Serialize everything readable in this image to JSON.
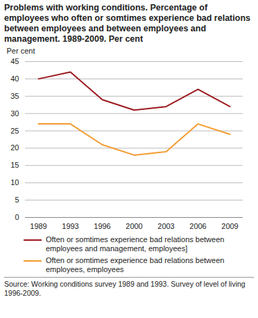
{
  "chart_data": {
    "type": "line",
    "title": "Problems with working conditions. Percentage of employees who often or somtimes experience bad relations between employees and between employees and management. 1989-2009. Per cent",
    "y_label": "Per cent",
    "categories": [
      "1989",
      "1993",
      "1996",
      "2000",
      "2003",
      "2006",
      "2009"
    ],
    "series": [
      {
        "name": "Often or somtimes experience bad relations between employees and management, employees]",
        "color": "#9e1b20",
        "values": [
          40,
          42,
          34,
          31,
          32,
          37,
          32
        ]
      },
      {
        "name": "Often or somtimes experience bad relations between employees, employees",
        "color": "#f39c32",
        "values": [
          27,
          27,
          21,
          18,
          19,
          27,
          24
        ]
      }
    ],
    "ylim": [
      0,
      45
    ],
    "yticks": [
      0,
      5,
      10,
      15,
      20,
      25,
      30,
      35,
      40,
      45
    ],
    "grid": true,
    "source": "Source: Working conditions survey 1989 and 1993. Survey of level of living 1996-2009."
  }
}
